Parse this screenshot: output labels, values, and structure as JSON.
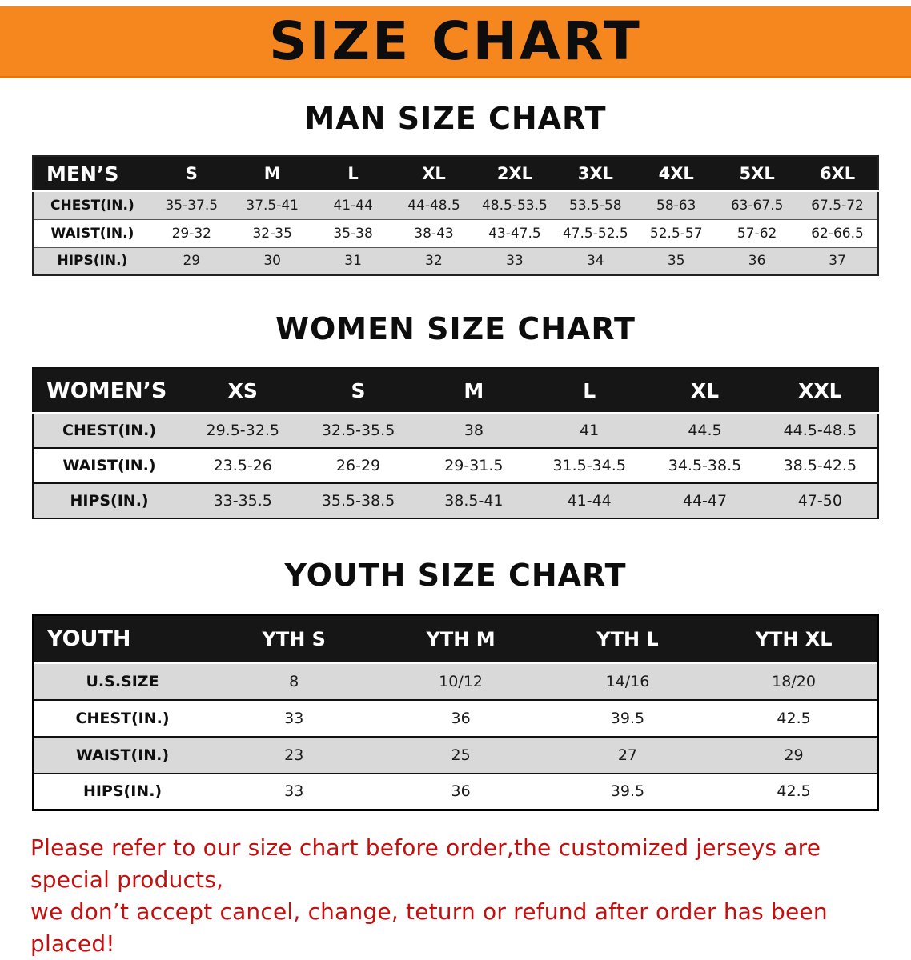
{
  "banner": {
    "title": "SIZE CHART"
  },
  "colors": {
    "banner_bg": "#f6871f",
    "banner_edge": "#e0770f",
    "header_bg": "#161616",
    "row_alt": "#d9d9d9",
    "disclaimer_color": "#c40f0f"
  },
  "sections": [
    {
      "heading": "MAN SIZE CHART",
      "table": {
        "corner": "MEN’S",
        "columns": [
          "S",
          "M",
          "L",
          "XL",
          "2XL",
          "3XL",
          "4XL",
          "5XL",
          "6XL"
        ],
        "rows": [
          {
            "label": "CHEST(IN.)",
            "values": [
              "35-37.5",
              "37.5-41",
              "41-44",
              "44-48.5",
              "48.5-53.5",
              "53.5-58",
              "58-63",
              "63-67.5",
              "67.5-72"
            ]
          },
          {
            "label": "WAIST(IN.)",
            "values": [
              "29-32",
              "32-35",
              "35-38",
              "38-43",
              "43-47.5",
              "47.5-52.5",
              "52.5-57",
              "57-62",
              "62-66.5"
            ]
          },
          {
            "label": "HIPS(IN.)",
            "values": [
              "29",
              "30",
              "31",
              "32",
              "33",
              "34",
              "35",
              "36",
              "37"
            ]
          }
        ]
      }
    },
    {
      "heading": "WOMEN SIZE CHART",
      "table": {
        "corner": "WOMEN’S",
        "columns": [
          "XS",
          "S",
          "M",
          "L",
          "XL",
          "XXL"
        ],
        "rows": [
          {
            "label": "CHEST(IN.)",
            "values": [
              "29.5-32.5",
              "32.5-35.5",
              "38",
              "41",
              "44.5",
              "44.5-48.5"
            ]
          },
          {
            "label": "WAIST(IN.)",
            "values": [
              "23.5-26",
              "26-29",
              "29-31.5",
              "31.5-34.5",
              "34.5-38.5",
              "38.5-42.5"
            ]
          },
          {
            "label": "HIPS(IN.)",
            "values": [
              "33-35.5",
              "35.5-38.5",
              "38.5-41",
              "41-44",
              "44-47",
              "47-50"
            ]
          }
        ]
      }
    },
    {
      "heading": "YOUTH SIZE CHART",
      "table": {
        "corner": "YOUTH",
        "columns": [
          "YTH S",
          "YTH M",
          "YTH L",
          "YTH XL"
        ],
        "rows": [
          {
            "label": "U.S.SIZE",
            "values": [
              "8",
              "10/12",
              "14/16",
              "18/20"
            ]
          },
          {
            "label": "CHEST(IN.)",
            "values": [
              "33",
              "36",
              "39.5",
              "42.5"
            ]
          },
          {
            "label": "WAIST(IN.)",
            "values": [
              "23",
              "25",
              "27",
              "29"
            ]
          },
          {
            "label": "HIPS(IN.)",
            "values": [
              "33",
              "36",
              "39.5",
              "42.5"
            ]
          }
        ]
      }
    }
  ],
  "disclaimer": {
    "line1": "Please refer to our size chart before order,the customized jerseys are special products,",
    "line2": "we don’t accept cancel, change, teturn or refund after order has been placed!"
  }
}
